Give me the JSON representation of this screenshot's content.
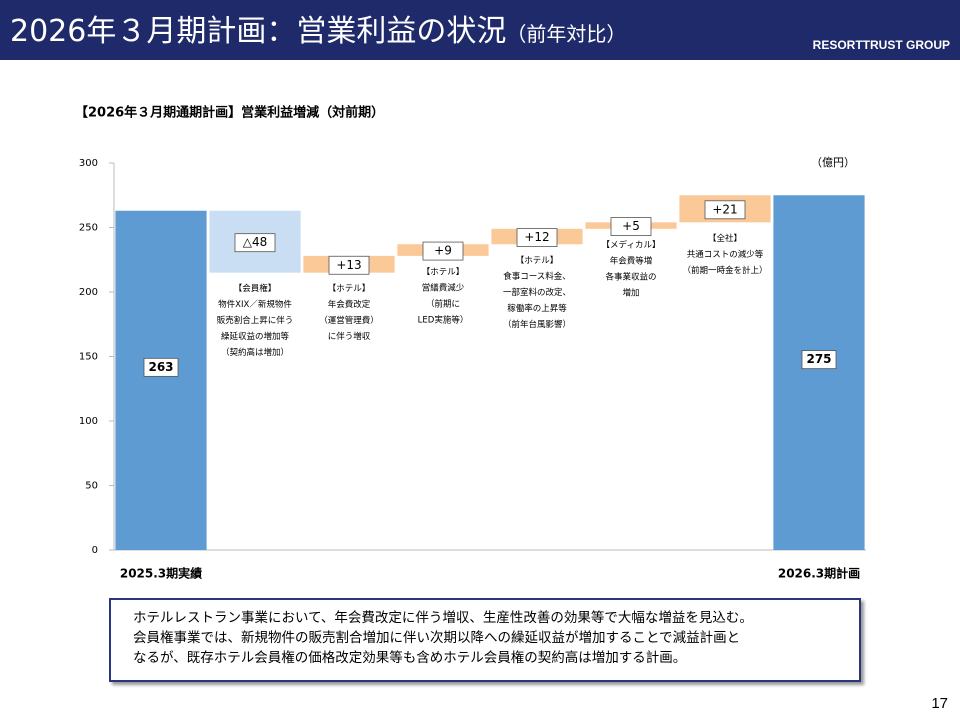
{
  "header": {
    "title": "2026年３月期計画：営業利益の状況",
    "title_note": "（前年対比）",
    "company": "RESORTTRUST GROUP"
  },
  "chart_data": {
    "type": "waterfall",
    "title": "【2026年３月期通期計画】営業利益増減（対前期）",
    "unit": "（億円）",
    "categories": [
      "2025.3期実績",
      null,
      null,
      null,
      null,
      null,
      null,
      "2026.3期計画"
    ],
    "values": [
      263,
      -48,
      13,
      9,
      12,
      5,
      21,
      275
    ],
    "value_labels": [
      "263",
      "△48",
      "+13",
      "+9",
      "+12",
      "+5",
      "+21",
      "275"
    ],
    "annotations": [
      null,
      [
        "【会員権】",
        "物件XIX／新規物件",
        "販売割合上昇に伴う",
        "繰延収益の増加等",
        "（契約高は増加）"
      ],
      [
        "【ホテル】",
        "年会費改定",
        "（運営管理費）",
        "に伴う増収"
      ],
      [
        "【ホテル】",
        "営繕費減少",
        "（前期に",
        "LED実施等）"
      ],
      [
        "【ホテル】",
        "食事コース料金、",
        "一部室料の改定、",
        "稼働率の上昇等",
        "（前年台風影響）"
      ],
      [
        "【メディカル】",
        "年会費等増",
        "各事業収益の",
        "増加"
      ],
      [
        "【全社】",
        "共通コストの減少等",
        "（前期一時金を計上）"
      ],
      null
    ],
    "colors": {
      "total": "#5f9bd3",
      "increase": "#fbc897",
      "decrease": "#c9def2"
    },
    "ylim": [
      0,
      300
    ],
    "yticks": [
      0,
      50,
      100,
      150,
      200,
      250,
      300
    ]
  },
  "note": [
    "ホテルレストラン事業において、年会費改定に伴う増収、生産性改善の効果等で大幅な増益を見込む。",
    "会員権事業では、新規物件の販売割合増加に伴い次期以降への繰延収益が増加することで減益計画と",
    "なるが、既存ホテル会員権の価格改定効果等も含めホテル会員権の契約高は増加する計画。"
  ],
  "page_number": "17"
}
